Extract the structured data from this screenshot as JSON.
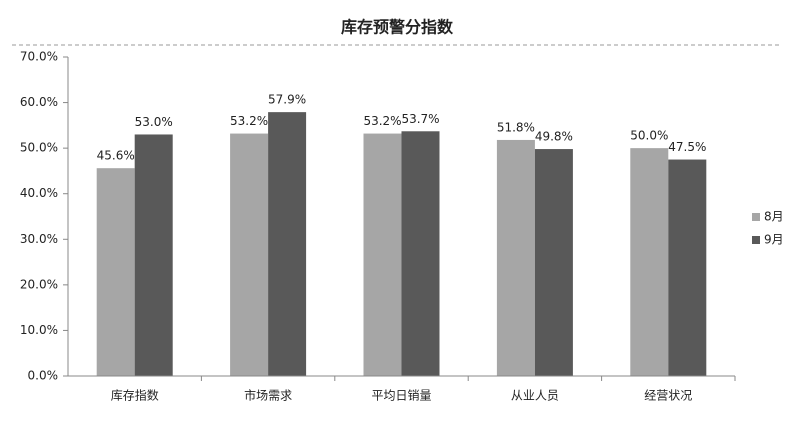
{
  "chart_data": {
    "type": "bar",
    "title": "库存预警分指数",
    "categories": [
      "库存指数",
      "市场需求",
      "平均日销量",
      "从业人员",
      "经营状况"
    ],
    "series": [
      {
        "name": "8月",
        "color": "#a6a6a6",
        "values": [
          45.6,
          53.2,
          53.2,
          51.8,
          50.0
        ],
        "value_labels": [
          "45.6%",
          "53.2%",
          "53.2%",
          "51.8%",
          "50.0%"
        ]
      },
      {
        "name": "9月",
        "color": "#595959",
        "values": [
          53.0,
          57.9,
          53.7,
          49.8,
          47.5
        ],
        "value_labels": [
          "53.0%",
          "57.9%",
          "53.7%",
          "49.8%",
          "47.5%"
        ]
      }
    ],
    "ylim": [
      0,
      70
    ],
    "yticks": [
      {
        "value": 0,
        "label": "0.0%"
      },
      {
        "value": 10,
        "label": "10.0%"
      },
      {
        "value": 20,
        "label": "20.0%"
      },
      {
        "value": 30,
        "label": "30.0%"
      },
      {
        "value": 40,
        "label": "40.0%"
      },
      {
        "value": 50,
        "label": "50.0%"
      },
      {
        "value": 60,
        "label": "60.0%"
      },
      {
        "value": 70,
        "label": "70.0%"
      }
    ],
    "grid": false,
    "legend": "right"
  }
}
